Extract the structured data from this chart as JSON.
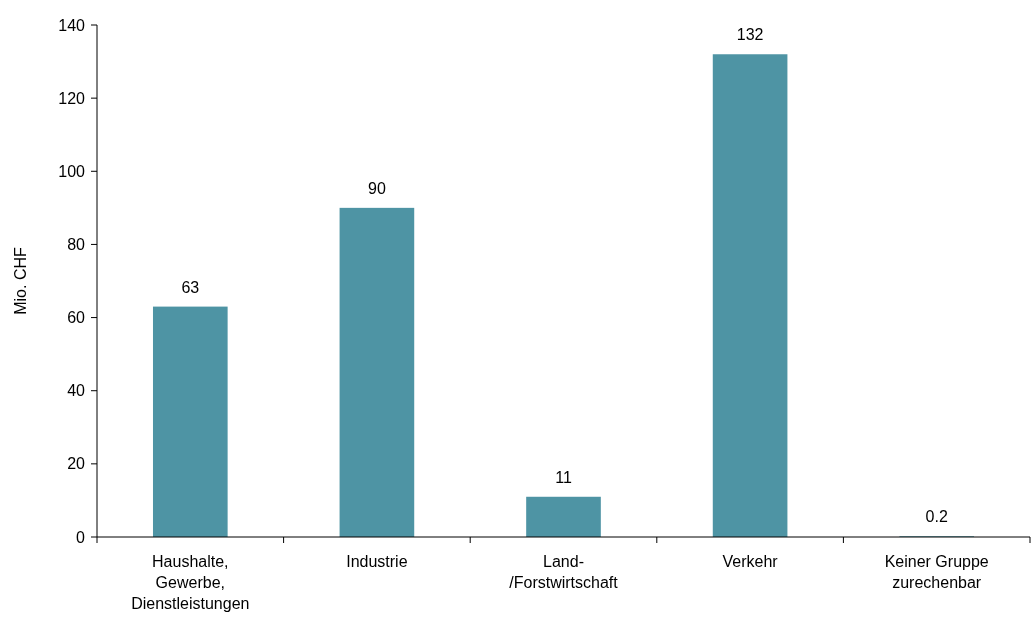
{
  "chart_data": {
    "type": "bar",
    "ylabel": "Mio. CHF",
    "categories": [
      "Haushalte,\nGewerbe,\nDienstleistungen",
      "Industrie",
      "Land-\n/Forstwirtschaft",
      "Verkehr",
      "Keiner Gruppe\nzurechenbar"
    ],
    "values": [
      63,
      90,
      11,
      132,
      0.2
    ],
    "color": "#4e94a4",
    "ylim": [
      0,
      140
    ],
    "yticks": [
      0,
      20,
      40,
      60,
      80,
      100,
      120,
      140
    ],
    "data_labels": true,
    "grid": false
  }
}
